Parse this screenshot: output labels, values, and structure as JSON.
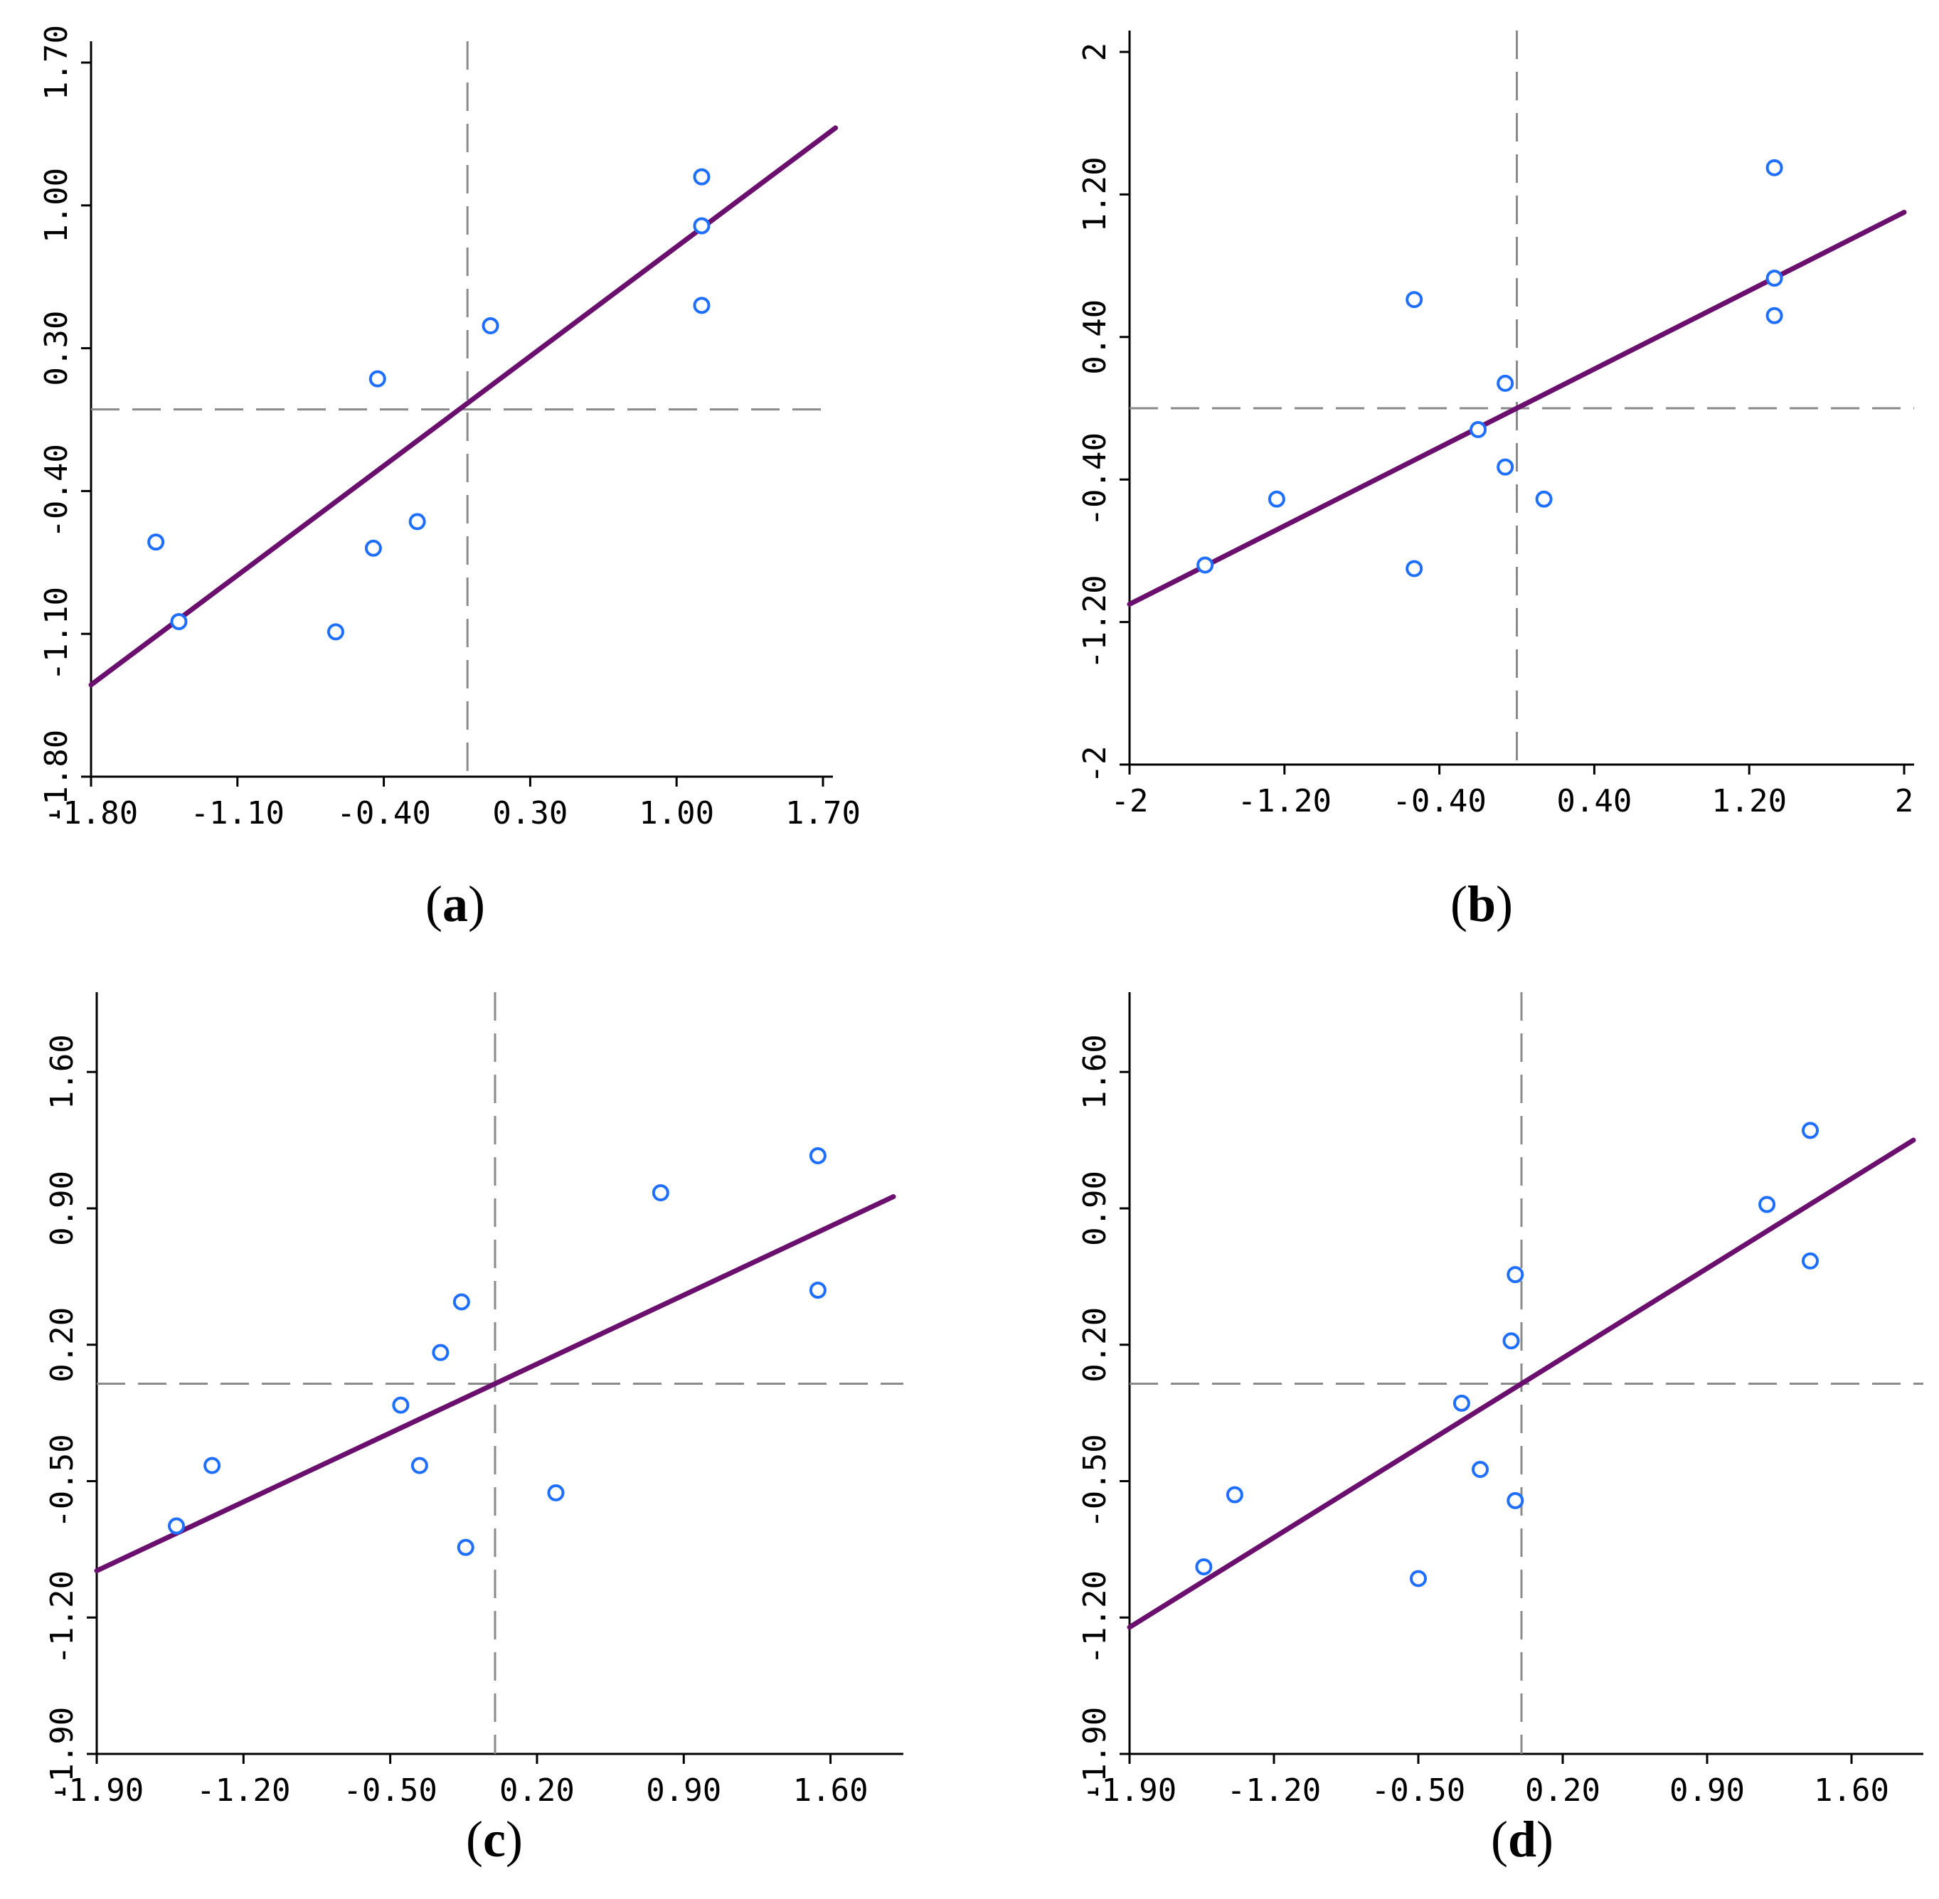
{
  "chart_data": [
    {
      "id": "a",
      "type": "scatter",
      "caption_letter": "a",
      "xlim": [
        -1.8,
        1.7
      ],
      "ylim": [
        -1.8,
        1.7
      ],
      "xticks": [
        -1.8,
        -1.1,
        -0.4,
        0.3,
        1.0,
        1.7
      ],
      "yticks": [
        -1.8,
        -1.1,
        -0.4,
        0.3,
        1.0,
        1.7
      ],
      "xtick_labels": [
        "-1.80",
        "-1.10",
        "-0.40",
        "0.30",
        "1.00",
        "1.70"
      ],
      "ytick_labels": [
        "-1.80",
        "-1.10",
        "-0.40",
        "0.30",
        "1.00",
        "1.70"
      ],
      "ref_x": 0.0,
      "ref_y": 0.0,
      "points": [
        {
          "x": 1.12,
          "y": 1.14
        },
        {
          "x": 1.12,
          "y": 0.9
        },
        {
          "x": 1.12,
          "y": 0.51
        },
        {
          "x": 0.11,
          "y": 0.41
        },
        {
          "x": -0.43,
          "y": 0.15
        },
        {
          "x": -0.45,
          "y": -0.68
        },
        {
          "x": -0.24,
          "y": -0.55
        },
        {
          "x": -0.63,
          "y": -1.09
        },
        {
          "x": -1.49,
          "y": -0.65
        },
        {
          "x": -1.38,
          "y": -1.04
        }
      ],
      "fit_line": {
        "x": [
          -1.8,
          1.76
        ],
        "y": [
          -1.35,
          1.38
        ]
      }
    },
    {
      "id": "b",
      "type": "scatter",
      "caption_letter": "b",
      "xlim": [
        -2,
        2
      ],
      "ylim": [
        -2,
        2
      ],
      "xticks": [
        -2,
        -1.2,
        -0.4,
        0.4,
        1.2,
        2
      ],
      "yticks": [
        -2,
        -1.2,
        -0.4,
        0.4,
        1.2,
        2
      ],
      "xtick_labels": [
        "-2",
        "-1.20",
        "-0.40",
        "0.40",
        "1.20",
        "2"
      ],
      "ytick_labels": [
        "-2",
        "-1.20",
        "-0.40",
        "0.40",
        "1.20",
        "2"
      ],
      "ref_x": 0.0,
      "ref_y": 0.0,
      "points": [
        {
          "x": 1.33,
          "y": 1.35
        },
        {
          "x": 1.33,
          "y": 0.73
        },
        {
          "x": 1.33,
          "y": 0.52
        },
        {
          "x": -0.53,
          "y": 0.61
        },
        {
          "x": -0.06,
          "y": 0.14
        },
        {
          "x": -0.2,
          "y": -0.12
        },
        {
          "x": -0.06,
          "y": -0.33
        },
        {
          "x": 0.14,
          "y": -0.51
        },
        {
          "x": -1.24,
          "y": -0.51
        },
        {
          "x": -1.61,
          "y": -0.88
        },
        {
          "x": -0.53,
          "y": -0.9
        }
      ],
      "fit_line": {
        "x": [
          -2,
          2
        ],
        "y": [
          -1.1,
          1.1
        ]
      }
    },
    {
      "id": "c",
      "type": "scatter",
      "caption_letter": "c",
      "xlim": [
        -1.9,
        1.9
      ],
      "ylim": [
        -1.9,
        1.9
      ],
      "xticks": [
        -1.9,
        -1.2,
        -0.5,
        0.2,
        0.9,
        1.6
      ],
      "yticks": [
        -1.9,
        -1.2,
        -0.5,
        0.2,
        0.9,
        1.6
      ],
      "xtick_labels": [
        "-1.90",
        "-1.20",
        "-0.50",
        "0.20",
        "0.90",
        "1.60"
      ],
      "ytick_labels": [
        "-1.90",
        "-1.20",
        "-0.50",
        "0.20",
        "0.90",
        "1.60"
      ],
      "ref_x": 0.0,
      "ref_y": 0.0,
      "points": [
        {
          "x": 1.54,
          "y": 1.17
        },
        {
          "x": 0.79,
          "y": 0.98
        },
        {
          "x": 1.54,
          "y": 0.48
        },
        {
          "x": -0.16,
          "y": 0.42
        },
        {
          "x": -0.26,
          "y": 0.16
        },
        {
          "x": -0.45,
          "y": -0.11
        },
        {
          "x": -0.36,
          "y": -0.42
        },
        {
          "x": 0.29,
          "y": -0.56
        },
        {
          "x": -0.14,
          "y": -0.84
        },
        {
          "x": -1.35,
          "y": -0.42
        },
        {
          "x": -1.52,
          "y": -0.73
        }
      ],
      "fit_line": {
        "x": [
          -1.9,
          1.9
        ],
        "y": [
          -0.96,
          0.96
        ]
      }
    },
    {
      "id": "d",
      "type": "scatter",
      "caption_letter": "d",
      "xlim": [
        -1.9,
        1.9
      ],
      "ylim": [
        -1.9,
        1.9
      ],
      "xticks": [
        -1.9,
        -1.2,
        -0.5,
        0.2,
        0.9,
        1.6
      ],
      "yticks": [
        -1.9,
        -1.2,
        -0.5,
        0.2,
        0.9,
        1.6
      ],
      "xtick_labels": [
        "-1.90",
        "-1.20",
        "-0.50",
        "0.20",
        "0.90",
        "1.60"
      ],
      "ytick_labels": [
        "-1.90",
        "-1.20",
        "-0.50",
        "0.20",
        "0.90",
        "1.60"
      ],
      "ref_x": 0.0,
      "ref_y": 0.0,
      "points": [
        {
          "x": 1.4,
          "y": 1.3
        },
        {
          "x": 1.19,
          "y": 0.92
        },
        {
          "x": 1.4,
          "y": 0.63
        },
        {
          "x": -0.03,
          "y": 0.56
        },
        {
          "x": -0.05,
          "y": 0.22
        },
        {
          "x": -0.29,
          "y": -0.1
        },
        {
          "x": -0.2,
          "y": -0.44
        },
        {
          "x": -0.03,
          "y": -0.6
        },
        {
          "x": -0.5,
          "y": -1.0
        },
        {
          "x": -1.39,
          "y": -0.57
        },
        {
          "x": -1.54,
          "y": -0.94
        }
      ],
      "fit_line": {
        "x": [
          -1.9,
          1.9
        ],
        "y": [
          -1.25,
          1.25
        ]
      }
    }
  ],
  "captions": {
    "a": {
      "open": "(",
      "letter": "a",
      "close": ")"
    },
    "b": {
      "open": "(",
      "letter": "b",
      "close": ")"
    },
    "c": {
      "open": "(",
      "letter": "c",
      "close": ")"
    },
    "d": {
      "open": "(",
      "letter": "d",
      "close": ")"
    }
  },
  "style": {
    "point_color": "#1e6fff",
    "line_color": "#6b0f6e",
    "ref_line_color": "#8a8a8a",
    "axis_color": "#000000"
  }
}
